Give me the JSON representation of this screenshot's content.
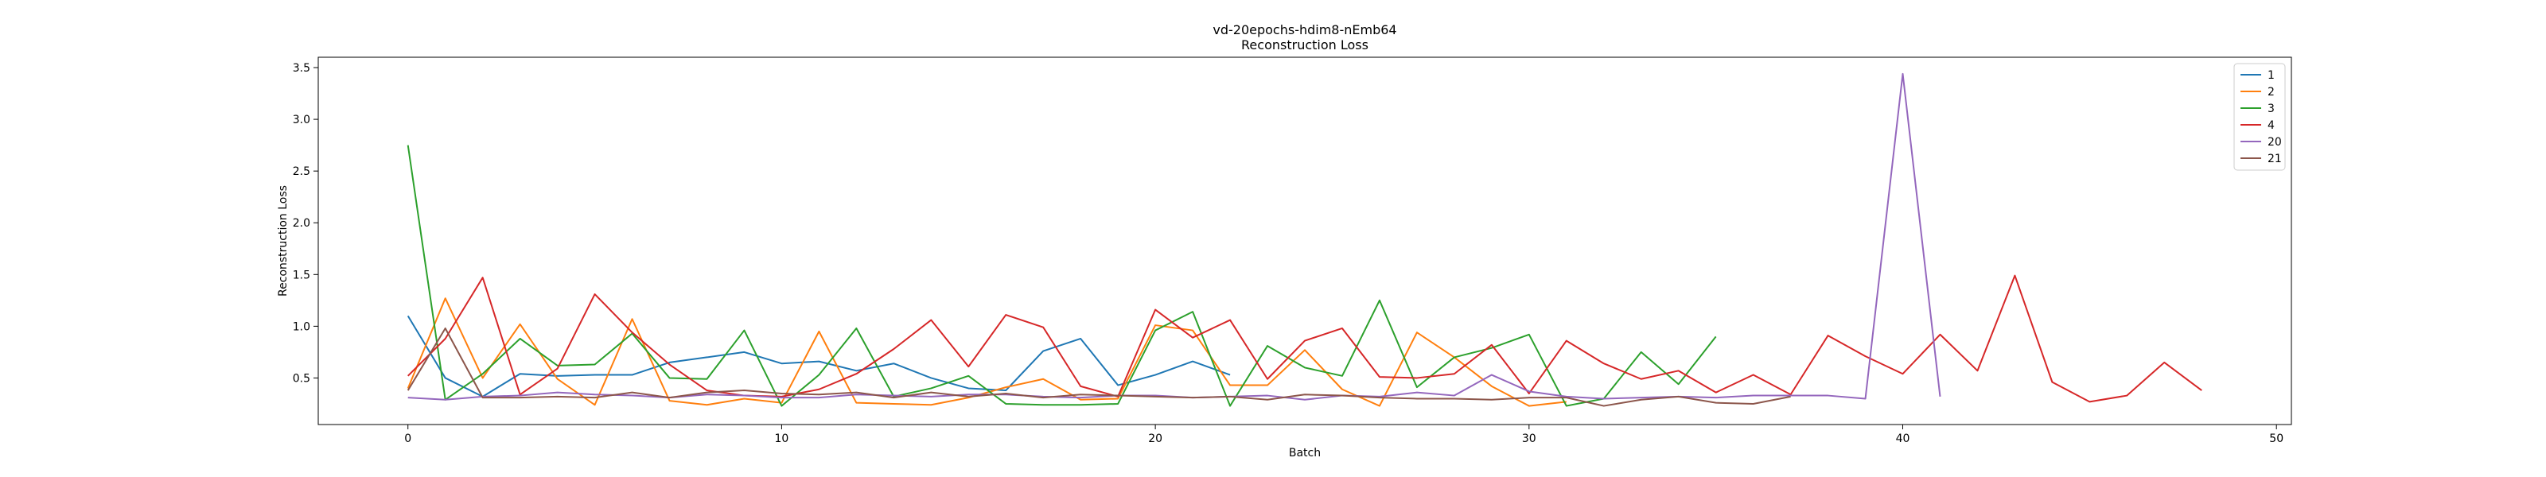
{
  "chart_data": {
    "type": "line",
    "title": "vd-20epochs-hdim8-nEmb64",
    "subtitle": "Reconstruction Loss",
    "xlabel": "Batch",
    "ylabel": "Reconstruction Loss",
    "xlim": [
      -2.4,
      50.4
    ],
    "ylim": [
      0.05,
      3.6
    ],
    "xticks": [
      0,
      10,
      20,
      30,
      40,
      50
    ],
    "yticks": [
      0.5,
      1.0,
      1.5,
      2.0,
      2.5,
      3.0,
      3.5
    ],
    "xtick_labels": [
      "0",
      "10",
      "20",
      "30",
      "40",
      "50"
    ],
    "ytick_labels": [
      "0.5",
      "1.0",
      "1.5",
      "2.0",
      "2.5",
      "3.0",
      "3.5"
    ],
    "grid": false,
    "legend_position": "top-right",
    "series": [
      {
        "name": "1",
        "color": "#1f77b4",
        "values": [
          1.1,
          0.5,
          0.32,
          0.54,
          0.52,
          0.53,
          0.53,
          0.65,
          0.7,
          0.75,
          0.64,
          0.66,
          0.57,
          0.64,
          0.5,
          0.4,
          0.38,
          0.76,
          0.88,
          0.43,
          0.53,
          0.66,
          0.53
        ]
      },
      {
        "name": "2",
        "color": "#ff7f0e",
        "values": [
          0.4,
          1.27,
          0.5,
          1.02,
          0.49,
          0.24,
          1.07,
          0.28,
          0.24,
          0.3,
          0.26,
          0.95,
          0.26,
          0.25,
          0.24,
          0.31,
          0.41,
          0.49,
          0.29,
          0.3,
          1.01,
          0.96,
          0.43,
          0.43,
          0.77,
          0.39,
          0.23,
          0.94,
          0.7,
          0.42,
          0.23,
          0.27
        ]
      },
      {
        "name": "3",
        "color": "#2ca02c",
        "values": [
          2.75,
          0.29,
          0.54,
          0.88,
          0.62,
          0.63,
          0.93,
          0.5,
          0.49,
          0.96,
          0.23,
          0.53,
          0.98,
          0.32,
          0.4,
          0.52,
          0.25,
          0.24,
          0.24,
          0.25,
          0.96,
          1.14,
          0.23,
          0.81,
          0.6,
          0.52,
          1.25,
          0.41,
          0.7,
          0.79,
          0.92,
          0.23,
          0.3,
          0.75,
          0.44,
          0.9
        ]
      },
      {
        "name": "4",
        "color": "#d62728",
        "values": [
          0.52,
          0.88,
          1.47,
          0.34,
          0.59,
          1.31,
          0.94,
          0.63,
          0.38,
          0.33,
          0.32,
          0.39,
          0.54,
          0.78,
          1.06,
          0.61,
          1.11,
          0.99,
          0.42,
          0.32,
          1.16,
          0.89,
          1.06,
          0.49,
          0.86,
          0.98,
          0.51,
          0.5,
          0.54,
          0.82,
          0.35,
          0.86,
          0.64,
          0.49,
          0.57,
          0.36,
          0.53,
          0.34,
          0.91,
          0.71,
          0.54,
          0.92,
          0.57,
          1.49,
          0.46,
          0.27,
          0.33,
          0.65,
          0.38
        ]
      },
      {
        "name": "20",
        "color": "#9467bd",
        "values": [
          0.31,
          0.29,
          0.32,
          0.33,
          0.36,
          0.34,
          0.33,
          0.31,
          0.34,
          0.33,
          0.31,
          0.31,
          0.34,
          0.33,
          0.32,
          0.34,
          0.34,
          0.32,
          0.31,
          0.33,
          0.33,
          0.31,
          0.32,
          0.33,
          0.29,
          0.33,
          0.32,
          0.36,
          0.33,
          0.53,
          0.37,
          0.32,
          0.3,
          0.31,
          0.32,
          0.31,
          0.33,
          0.33,
          0.33,
          0.3,
          3.44,
          0.32
        ]
      },
      {
        "name": "21",
        "color": "#8c564b",
        "values": [
          0.38,
          0.98,
          0.31,
          0.31,
          0.32,
          0.31,
          0.36,
          0.31,
          0.36,
          0.38,
          0.35,
          0.34,
          0.36,
          0.31,
          0.36,
          0.32,
          0.35,
          0.31,
          0.34,
          0.33,
          0.32,
          0.31,
          0.32,
          0.29,
          0.34,
          0.33,
          0.31,
          0.3,
          0.3,
          0.29,
          0.31,
          0.31,
          0.23,
          0.29,
          0.32,
          0.26,
          0.25,
          0.32
        ]
      }
    ]
  }
}
